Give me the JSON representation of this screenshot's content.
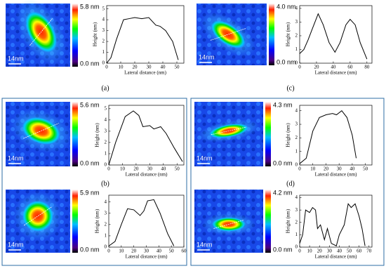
{
  "panels": [
    "(a)",
    "(b)",
    "(c)",
    "(d)"
  ],
  "chart_data": [
    {
      "type": "line",
      "colorbar_max": "5.8 nm",
      "colorbar_min": "0.0 nm",
      "scale_bar": "14nm",
      "xlabel": "Lateral distance (nm)",
      "ylabel": "Height (nm)",
      "x": [
        0,
        3,
        7,
        12,
        16,
        20,
        25,
        30,
        35,
        38,
        42,
        47,
        51
      ],
      "values": [
        0,
        0.5,
        2.2,
        4.0,
        4.1,
        4.2,
        4.1,
        4.2,
        3.5,
        3.4,
        3.0,
        2.0,
        0.3
      ],
      "xlim": [
        0,
        55
      ],
      "ylim": [
        0,
        5.3
      ],
      "xticks": [
        0,
        10,
        20,
        30,
        40,
        50
      ],
      "yticks": [
        0,
        1,
        2,
        3,
        4,
        5
      ],
      "color": "#000000"
    },
    {
      "type": "line",
      "colorbar_max": "4.0 nm",
      "colorbar_min": "0.0 nm",
      "scale_bar": "14nm",
      "xlabel": "Lateral distance (nm)",
      "ylabel": "Height (nm)",
      "x": [
        0,
        5,
        10,
        15,
        22,
        28,
        35,
        42,
        48,
        55,
        60,
        66,
        72,
        80
      ],
      "values": [
        0.7,
        1.0,
        1.7,
        2.5,
        3.6,
        2.8,
        1.5,
        0.8,
        1.5,
        2.8,
        3.2,
        2.8,
        1.5,
        0.3
      ],
      "xlim": [
        0,
        86
      ],
      "ylim": [
        0,
        4.2
      ],
      "xticks": [
        0,
        20,
        40,
        60,
        80
      ],
      "yticks": [
        0,
        1,
        2,
        3,
        4
      ],
      "color": "#000000"
    },
    {
      "type": "line",
      "colorbar_max": "5.6 nm",
      "colorbar_min": "0.0 nm",
      "scale_bar": "14nm",
      "xlabel": "Lateral distance (nm)",
      "ylabel": "Height (nm)",
      "x": [
        0,
        5,
        12,
        18,
        22,
        25,
        30,
        33,
        38,
        42,
        48,
        54
      ],
      "values": [
        0,
        2.0,
        4.3,
        4.8,
        4.4,
        3.4,
        3.5,
        3.2,
        3.4,
        2.8,
        1.5,
        0.3
      ],
      "xlim": [
        0,
        55
      ],
      "ylim": [
        0,
        5.3
      ],
      "xticks": [
        0,
        10,
        20,
        30,
        40,
        50
      ],
      "yticks": [
        0,
        1,
        2,
        3,
        4,
        5
      ],
      "color": "#000000"
    },
    {
      "type": "line",
      "colorbar_max": "5.9 nm",
      "colorbar_min": "0.0 nm",
      "scale_bar": "14nm",
      "xlabel": "Lateral distance (nm)",
      "ylabel": "Height (nm)",
      "x": [
        0,
        5,
        10,
        15,
        20,
        25,
        28,
        31,
        36,
        41,
        47,
        52
      ],
      "values": [
        0.1,
        0.5,
        2.0,
        3.4,
        3.3,
        2.8,
        3.2,
        4.1,
        4.2,
        3.0,
        1.2,
        0.1
      ],
      "xlim": [
        0,
        60
      ],
      "ylim": [
        0,
        4.6
      ],
      "xticks": [
        0,
        10,
        20,
        30,
        40,
        50,
        60
      ],
      "yticks": [
        0,
        1,
        2,
        3,
        4
      ],
      "color": "#000000"
    },
    {
      "type": "line",
      "colorbar_max": "4.3 nm",
      "colorbar_min": "0.0 nm",
      "scale_bar": "14nm",
      "xlabel": "Lateral distance (nm)",
      "ylabel": "Height (nm)",
      "x": [
        0,
        5,
        10,
        15,
        20,
        25,
        28,
        32,
        36,
        40,
        43
      ],
      "values": [
        0.1,
        0.5,
        2.5,
        3.5,
        3.7,
        3.8,
        3.7,
        4.0,
        3.5,
        2.2,
        0.5
      ],
      "xlim": [
        0,
        55
      ],
      "ylim": [
        0,
        4.4
      ],
      "xticks": [
        0,
        10,
        20,
        30,
        40,
        50
      ],
      "yticks": [
        0,
        1,
        2,
        3,
        4
      ],
      "color": "#000000"
    },
    {
      "type": "line",
      "colorbar_max": "4.2 nm",
      "colorbar_min": "0.0 nm",
      "scale_bar": "14nm",
      "xlabel": "Lateral distance (nm)",
      "ylabel": "Height (nm)",
      "x": [
        0,
        3,
        6,
        10,
        13,
        16,
        18,
        21,
        25,
        28,
        32,
        37,
        40,
        45,
        49,
        52,
        56,
        60,
        63,
        66
      ],
      "values": [
        0.3,
        1.0,
        3.0,
        2.8,
        3.2,
        3.0,
        1.5,
        1.8,
        0.6,
        1.5,
        0.3,
        0.1,
        1.0,
        1.8,
        3.5,
        3.2,
        3.5,
        2.5,
        1.5,
        0.1
      ],
      "xlim": [
        0,
        73
      ],
      "ylim": [
        0,
        4.2
      ],
      "xticks": [
        0,
        10,
        20,
        30,
        40,
        50,
        60,
        70
      ],
      "yticks": [
        0,
        1,
        2,
        3,
        4
      ],
      "color": "#000000"
    }
  ]
}
